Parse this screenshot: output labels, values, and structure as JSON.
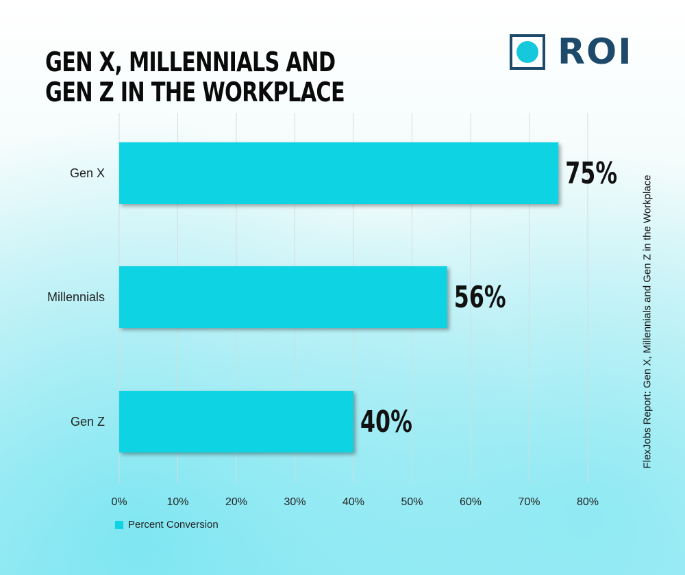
{
  "title_lines": [
    "Gen X, Millennials and",
    "Gen Z in the Workplace"
  ],
  "logo": {
    "text": "ROI",
    "brand_color": "#1d4a6a",
    "accent_color": "#16c8dc"
  },
  "side_note": "FlexJobs Report: Gen X, Millennials and Gen Z in the Workplace",
  "colors": {
    "bar": "#0dd3e3",
    "grid": "#d4dcdc",
    "text": "#111111"
  },
  "chart_data": {
    "type": "bar",
    "orientation": "horizontal",
    "categories": [
      "Gen X",
      "Millennials",
      "Gen Z"
    ],
    "series": [
      {
        "name": "Percent Conversion",
        "values": [
          75,
          56,
          40
        ]
      }
    ],
    "data_labels": [
      "75%",
      "56%",
      "40%"
    ],
    "xlim": [
      0,
      80
    ],
    "x_ticks": [
      0,
      10,
      20,
      30,
      40,
      50,
      60,
      70,
      80
    ],
    "x_tick_labels": [
      "0%",
      "10%",
      "20%",
      "30%",
      "40%",
      "50%",
      "60%",
      "70%",
      "80%"
    ],
    "grid": true,
    "legend_position": "bottom-left"
  }
}
